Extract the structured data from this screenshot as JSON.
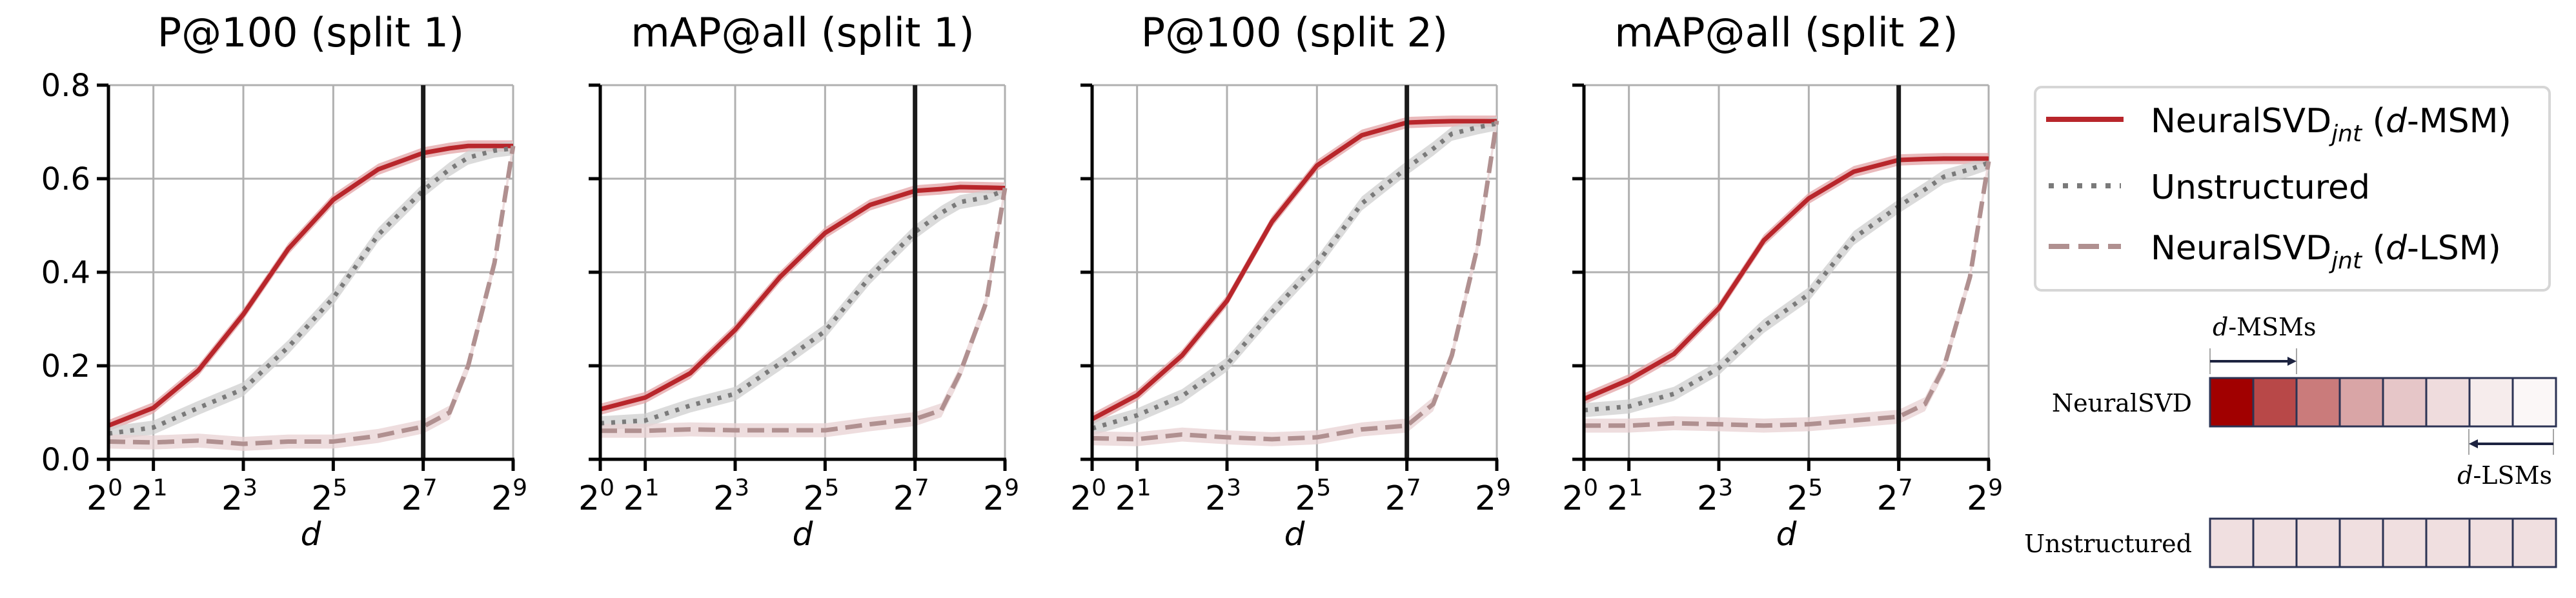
{
  "legend": {
    "items": [
      {
        "base": "NeuralSVD",
        "sub": "jnt",
        "open": " (",
        "ital": "d",
        "rest": "-MSM)"
      },
      {
        "base": "Unstructured"
      },
      {
        "base": "NeuralSVD",
        "sub": "jnt",
        "open": " (",
        "ital": "d",
        "rest": "-LSM)"
      }
    ]
  },
  "diagram": {
    "row1_label": "NeuralSVD",
    "row2_label": "Unstructured",
    "msm_label_ital": "d",
    "msm_label_rest": "-MSMs",
    "lsm_label_ital": "d",
    "lsm_label_rest": "-LSMs",
    "neuralsvd_cell_colors": [
      "#a10000",
      "#b84848",
      "#ca7b7b",
      "#d9a5a6",
      "#e6c6c8",
      "#efdcdd",
      "#f6ecec",
      "#fbf7f7"
    ],
    "unstructured_cell_color": "#f0dfe0",
    "border_color": "#2c3354"
  },
  "colors": {
    "msm": "#b8262b",
    "unstructured": "#7a7a7a",
    "lsm": "#b09090",
    "vline": "#1a1a1a",
    "grid": "#b0b0b0"
  },
  "chart_data": [
    {
      "type": "line",
      "title": "P@100 (split 1)",
      "xlabel": "d",
      "xscale": "log2",
      "xlim": [
        1,
        512
      ],
      "ylim": [
        0,
        0.8
      ],
      "xticks": [
        {
          "base": "2",
          "exp": "0"
        },
        {
          "base": "2",
          "exp": "1"
        },
        {
          "base": "2",
          "exp": "3"
        },
        {
          "base": "2",
          "exp": "5"
        },
        {
          "base": "2",
          "exp": "7"
        },
        {
          "base": "2",
          "exp": "9"
        }
      ],
      "yticks": [
        "0.0",
        "0.2",
        "0.4",
        "0.6",
        "0.8"
      ],
      "vline_x": 128,
      "grid": true,
      "x": [
        1,
        2,
        4,
        8,
        16,
        32,
        64,
        128,
        192,
        256,
        384,
        512
      ],
      "series": [
        {
          "name": "NeuralSVDjnt (d-MSM)",
          "style": "solid",
          "values": [
            0.072,
            0.11,
            0.19,
            0.31,
            0.45,
            0.555,
            0.62,
            0.655,
            0.665,
            0.67,
            0.67,
            0.67
          ]
        },
        {
          "name": "Unstructured",
          "style": "dotted",
          "values": [
            0.055,
            0.068,
            0.11,
            0.15,
            0.24,
            0.345,
            0.48,
            0.575,
            0.62,
            0.645,
            0.66,
            0.665
          ]
        },
        {
          "name": "NeuralSVDjnt (d-LSM)",
          "style": "dashed",
          "values": [
            0.038,
            0.036,
            0.04,
            0.033,
            0.038,
            0.038,
            0.05,
            0.07,
            0.1,
            0.2,
            0.42,
            0.67
          ]
        }
      ]
    },
    {
      "type": "line",
      "title": "mAP@all (split 1)",
      "xlabel": "d",
      "xscale": "log2",
      "xlim": [
        1,
        512
      ],
      "ylim": [
        0,
        0.8
      ],
      "xticks": [
        {
          "base": "2",
          "exp": "0"
        },
        {
          "base": "2",
          "exp": "1"
        },
        {
          "base": "2",
          "exp": "3"
        },
        {
          "base": "2",
          "exp": "5"
        },
        {
          "base": "2",
          "exp": "7"
        },
        {
          "base": "2",
          "exp": "9"
        }
      ],
      "yticks": [],
      "vline_x": 128,
      "grid": true,
      "x": [
        1,
        2,
        4,
        8,
        16,
        32,
        64,
        128,
        192,
        256,
        384,
        512
      ],
      "series": [
        {
          "name": "NeuralSVDjnt (d-MSM)",
          "style": "solid",
          "values": [
            0.107,
            0.132,
            0.184,
            0.277,
            0.39,
            0.484,
            0.544,
            0.574,
            0.578,
            0.582,
            0.581,
            0.58
          ]
        },
        {
          "name": "Unstructured",
          "style": "dotted",
          "values": [
            0.077,
            0.083,
            0.115,
            0.14,
            0.205,
            0.274,
            0.39,
            0.486,
            0.527,
            0.55,
            0.56,
            0.575
          ]
        },
        {
          "name": "NeuralSVDjnt (d-LSM)",
          "style": "dashed",
          "values": [
            0.061,
            0.061,
            0.064,
            0.062,
            0.062,
            0.062,
            0.075,
            0.086,
            0.105,
            0.184,
            0.336,
            0.58
          ]
        }
      ]
    },
    {
      "type": "line",
      "title": "P@100 (split 2)",
      "xlabel": "d",
      "xscale": "log2",
      "xlim": [
        1,
        512
      ],
      "ylim": [
        0,
        0.8
      ],
      "xticks": [
        {
          "base": "2",
          "exp": "0"
        },
        {
          "base": "2",
          "exp": "1"
        },
        {
          "base": "2",
          "exp": "3"
        },
        {
          "base": "2",
          "exp": "5"
        },
        {
          "base": "2",
          "exp": "7"
        },
        {
          "base": "2",
          "exp": "9"
        }
      ],
      "yticks": [],
      "vline_x": 128,
      "grid": true,
      "x": [
        1,
        2,
        4,
        8,
        16,
        32,
        64,
        128,
        192,
        256,
        384,
        512
      ],
      "series": [
        {
          "name": "NeuralSVDjnt (d-MSM)",
          "style": "solid",
          "values": [
            0.086,
            0.137,
            0.222,
            0.339,
            0.508,
            0.628,
            0.693,
            0.72,
            0.722,
            0.723,
            0.723,
            0.723
          ]
        },
        {
          "name": "Unstructured",
          "style": "dotted",
          "values": [
            0.066,
            0.094,
            0.135,
            0.203,
            0.315,
            0.418,
            0.547,
            0.623,
            0.664,
            0.696,
            0.71,
            0.718
          ]
        },
        {
          "name": "NeuralSVDjnt (d-LSM)",
          "style": "dashed",
          "values": [
            0.045,
            0.043,
            0.053,
            0.047,
            0.043,
            0.047,
            0.064,
            0.072,
            0.118,
            0.222,
            0.46,
            0.724
          ]
        }
      ]
    },
    {
      "type": "line",
      "title": "mAP@all (split 2)",
      "xlabel": "d",
      "xscale": "log2",
      "xlim": [
        1,
        512
      ],
      "ylim": [
        0,
        0.8
      ],
      "xticks": [
        {
          "base": "2",
          "exp": "0"
        },
        {
          "base": "2",
          "exp": "1"
        },
        {
          "base": "2",
          "exp": "3"
        },
        {
          "base": "2",
          "exp": "5"
        },
        {
          "base": "2",
          "exp": "7"
        },
        {
          "base": "2",
          "exp": "9"
        }
      ],
      "yticks": [],
      "vline_x": 128,
      "grid": true,
      "x": [
        1,
        2,
        4,
        8,
        16,
        32,
        64,
        128,
        192,
        256,
        384,
        512
      ],
      "series": [
        {
          "name": "NeuralSVDjnt (d-MSM)",
          "style": "solid",
          "values": [
            0.129,
            0.17,
            0.225,
            0.323,
            0.468,
            0.558,
            0.615,
            0.64,
            0.642,
            0.643,
            0.643,
            0.643
          ]
        },
        {
          "name": "Unstructured",
          "style": "dotted",
          "values": [
            0.105,
            0.113,
            0.14,
            0.195,
            0.285,
            0.353,
            0.473,
            0.541,
            0.577,
            0.604,
            0.62,
            0.634
          ]
        },
        {
          "name": "NeuralSVDjnt (d-LSM)",
          "style": "dashed",
          "values": [
            0.072,
            0.072,
            0.077,
            0.075,
            0.072,
            0.075,
            0.083,
            0.091,
            0.118,
            0.195,
            0.39,
            0.637
          ]
        }
      ]
    }
  ]
}
